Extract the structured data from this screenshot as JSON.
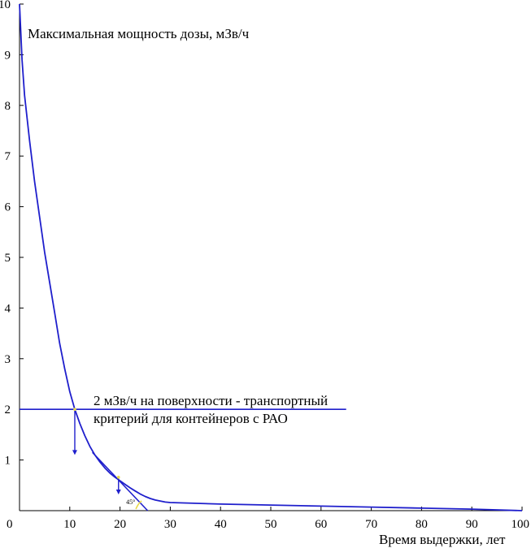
{
  "chart_data": {
    "type": "line",
    "title": "",
    "ylabel": "Максимальная мощность дозы, мЗв/ч",
    "xlabel": "Время выдержки, лет",
    "xlim": [
      0,
      100
    ],
    "ylim": [
      0,
      10
    ],
    "x_ticks": [
      0,
      10,
      20,
      30,
      40,
      50,
      60,
      70,
      80,
      90,
      100
    ],
    "y_ticks": [
      1,
      2,
      3,
      4,
      5,
      6,
      7,
      8,
      9,
      10
    ],
    "grid": false,
    "line_color": "#1f1fcc",
    "series": [
      {
        "x": [
          0,
          0.5,
          1,
          2,
          3,
          4,
          5,
          6,
          7,
          8,
          9,
          10,
          11,
          12,
          13,
          14,
          15,
          16,
          17,
          18,
          19,
          20,
          21,
          22,
          23,
          24,
          25,
          26,
          27,
          28,
          29,
          30,
          40,
          50,
          60,
          70,
          80,
          90,
          100
        ],
        "y": [
          10,
          8.9,
          8.2,
          7.3,
          6.5,
          5.8,
          5.1,
          4.5,
          3.9,
          3.3,
          2.8,
          2.35,
          2.0,
          1.72,
          1.48,
          1.27,
          1.1,
          0.96,
          0.84,
          0.74,
          0.66,
          0.59,
          0.52,
          0.45,
          0.39,
          0.33,
          0.28,
          0.24,
          0.21,
          0.19,
          0.17,
          0.16,
          0.13,
          0.11,
          0.09,
          0.07,
          0.05,
          0.03,
          0.0
        ]
      }
    ],
    "threshold": {
      "y": 2,
      "x_end": 65,
      "label_line1": "2 мЗв/ч на поверхности - транспортный",
      "label_line2": "критерий для контейнеров с РАО"
    },
    "tangent_line": {
      "x": [
        14.5,
        25.5
      ],
      "y": [
        1.15,
        0.0
      ]
    },
    "arrows": [
      {
        "x": 11,
        "y_from": 2.0,
        "y_to": 1.1
      },
      {
        "x": 19.7,
        "y_from": 0.66,
        "y_to": 0.32
      }
    ],
    "marker_points": [
      {
        "x": 11,
        "y": 2.0,
        "color": "#e8d84a"
      },
      {
        "x": 19.7,
        "y": 0.66,
        "color": "#e8d84a"
      }
    ],
    "angle_marker": {
      "x": 23.8,
      "label": "45°",
      "color": "#e8d84a"
    }
  }
}
